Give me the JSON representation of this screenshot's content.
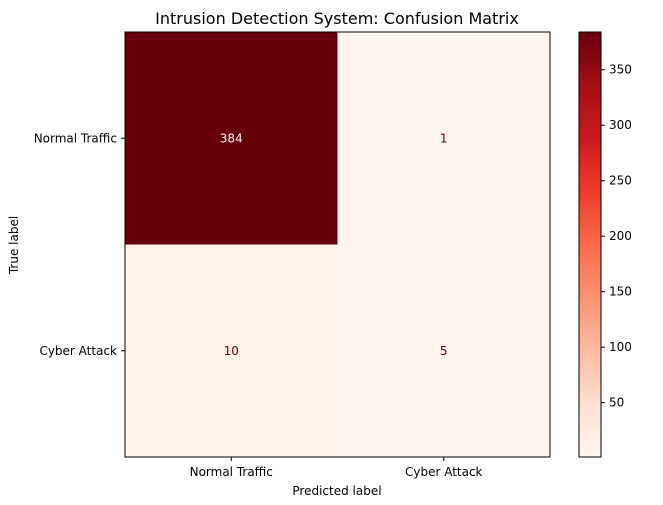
{
  "chart_data": {
    "type": "heatmap",
    "title": "Intrusion Detection System: Confusion Matrix",
    "xlabel": "Predicted label",
    "ylabel": "True label",
    "x_categories": [
      "Normal Traffic",
      "Cyber Attack"
    ],
    "y_categories": [
      "Normal Traffic",
      "Cyber Attack"
    ],
    "matrix": [
      [
        384,
        1
      ],
      [
        10,
        5
      ]
    ],
    "colormap": "Reds",
    "colorbar": {
      "min": 1,
      "max": 384,
      "ticks": [
        50,
        100,
        150,
        200,
        250,
        300,
        350
      ]
    },
    "grid": false,
    "colors": {
      "low": "#fff5f0",
      "high": "#67000d",
      "text_on_dark": "#fff5f0",
      "text_on_light": "#67000d"
    }
  }
}
